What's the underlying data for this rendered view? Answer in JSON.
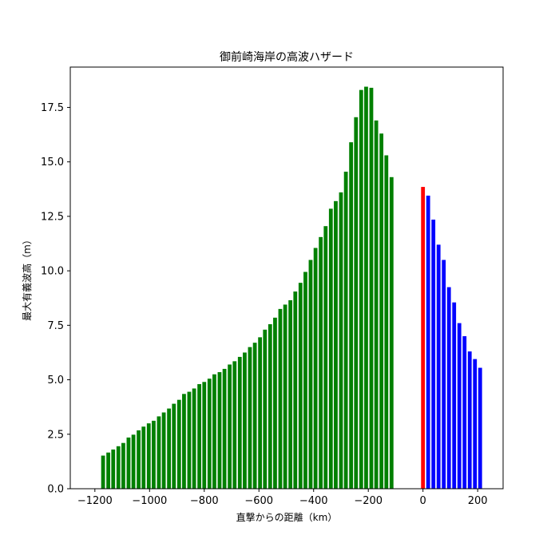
{
  "chart_data": {
    "type": "bar",
    "title": "御前崎海岸の高波ハザード",
    "xlabel": "直撃からの距離（km）",
    "ylabel": "最大有義波高（m）",
    "xlim": [
      -1290,
      293
    ],
    "ylim": [
      0,
      19.35
    ],
    "xticks": [
      -1200,
      -1000,
      -800,
      -600,
      -400,
      -200,
      0,
      200
    ],
    "yticks": [
      0.0,
      2.5,
      5.0,
      7.5,
      10.0,
      12.5,
      15.0,
      17.5
    ],
    "bar_width_km": 14,
    "grid": false,
    "legend": "none",
    "colors": {
      "approach": "#008000",
      "landfall": "#ff0000",
      "after": "#0000ff"
    },
    "series": [
      {
        "color": "#008000",
        "points": [
          {
            "x": -1170,
            "y": 1.52
          },
          {
            "x": -1151,
            "y": 1.66
          },
          {
            "x": -1133,
            "y": 1.8
          },
          {
            "x": -1114,
            "y": 1.95
          },
          {
            "x": -1096,
            "y": 2.1
          },
          {
            "x": -1077,
            "y": 2.35
          },
          {
            "x": -1059,
            "y": 2.48
          },
          {
            "x": -1040,
            "y": 2.68
          },
          {
            "x": -1022,
            "y": 2.85
          },
          {
            "x": -1003,
            "y": 3.0
          },
          {
            "x": -985,
            "y": 3.12
          },
          {
            "x": -966,
            "y": 3.32
          },
          {
            "x": -948,
            "y": 3.5
          },
          {
            "x": -929,
            "y": 3.68
          },
          {
            "x": -911,
            "y": 3.9
          },
          {
            "x": -892,
            "y": 4.08
          },
          {
            "x": -874,
            "y": 4.35
          },
          {
            "x": -855,
            "y": 4.45
          },
          {
            "x": -837,
            "y": 4.6
          },
          {
            "x": -818,
            "y": 4.8
          },
          {
            "x": -800,
            "y": 4.9
          },
          {
            "x": -781,
            "y": 5.05
          },
          {
            "x": -763,
            "y": 5.25
          },
          {
            "x": -744,
            "y": 5.35
          },
          {
            "x": -726,
            "y": 5.5
          },
          {
            "x": -707,
            "y": 5.7
          },
          {
            "x": -689,
            "y": 5.85
          },
          {
            "x": -670,
            "y": 6.05
          },
          {
            "x": -652,
            "y": 6.25
          },
          {
            "x": -633,
            "y": 6.5
          },
          {
            "x": -615,
            "y": 6.7
          },
          {
            "x": -596,
            "y": 6.95
          },
          {
            "x": -578,
            "y": 7.3
          },
          {
            "x": -559,
            "y": 7.55
          },
          {
            "x": -541,
            "y": 7.85
          },
          {
            "x": -522,
            "y": 8.25
          },
          {
            "x": -504,
            "y": 8.45
          },
          {
            "x": -485,
            "y": 8.65
          },
          {
            "x": -467,
            "y": 9.05
          },
          {
            "x": -448,
            "y": 9.45
          },
          {
            "x": -430,
            "y": 9.95
          },
          {
            "x": -411,
            "y": 10.5
          },
          {
            "x": -393,
            "y": 11.05
          },
          {
            "x": -374,
            "y": 11.55
          },
          {
            "x": -356,
            "y": 12.05
          },
          {
            "x": -337,
            "y": 12.85
          },
          {
            "x": -319,
            "y": 13.2
          },
          {
            "x": -300,
            "y": 13.6
          },
          {
            "x": -282,
            "y": 14.55
          },
          {
            "x": -263,
            "y": 15.9
          },
          {
            "x": -245,
            "y": 17.05
          },
          {
            "x": -226,
            "y": 18.3
          },
          {
            "x": -208,
            "y": 18.45
          },
          {
            "x": -189,
            "y": 18.4
          },
          {
            "x": -171,
            "y": 16.9
          },
          {
            "x": -152,
            "y": 16.3
          },
          {
            "x": -134,
            "y": 15.3
          },
          {
            "x": -115,
            "y": 14.3
          }
        ]
      },
      {
        "color": "#ff0000",
        "points": [
          {
            "x": 0,
            "y": 13.85
          }
        ]
      },
      {
        "color": "#0000ff",
        "points": [
          {
            "x": 19,
            "y": 13.45
          },
          {
            "x": 38,
            "y": 12.35
          },
          {
            "x": 57,
            "y": 11.2
          },
          {
            "x": 76,
            "y": 10.5
          },
          {
            "x": 95,
            "y": 9.25
          },
          {
            "x": 114,
            "y": 8.55
          },
          {
            "x": 133,
            "y": 7.6
          },
          {
            "x": 152,
            "y": 7.0
          },
          {
            "x": 171,
            "y": 6.3
          },
          {
            "x": 190,
            "y": 5.95
          },
          {
            "x": 209,
            "y": 5.55
          }
        ]
      }
    ]
  }
}
